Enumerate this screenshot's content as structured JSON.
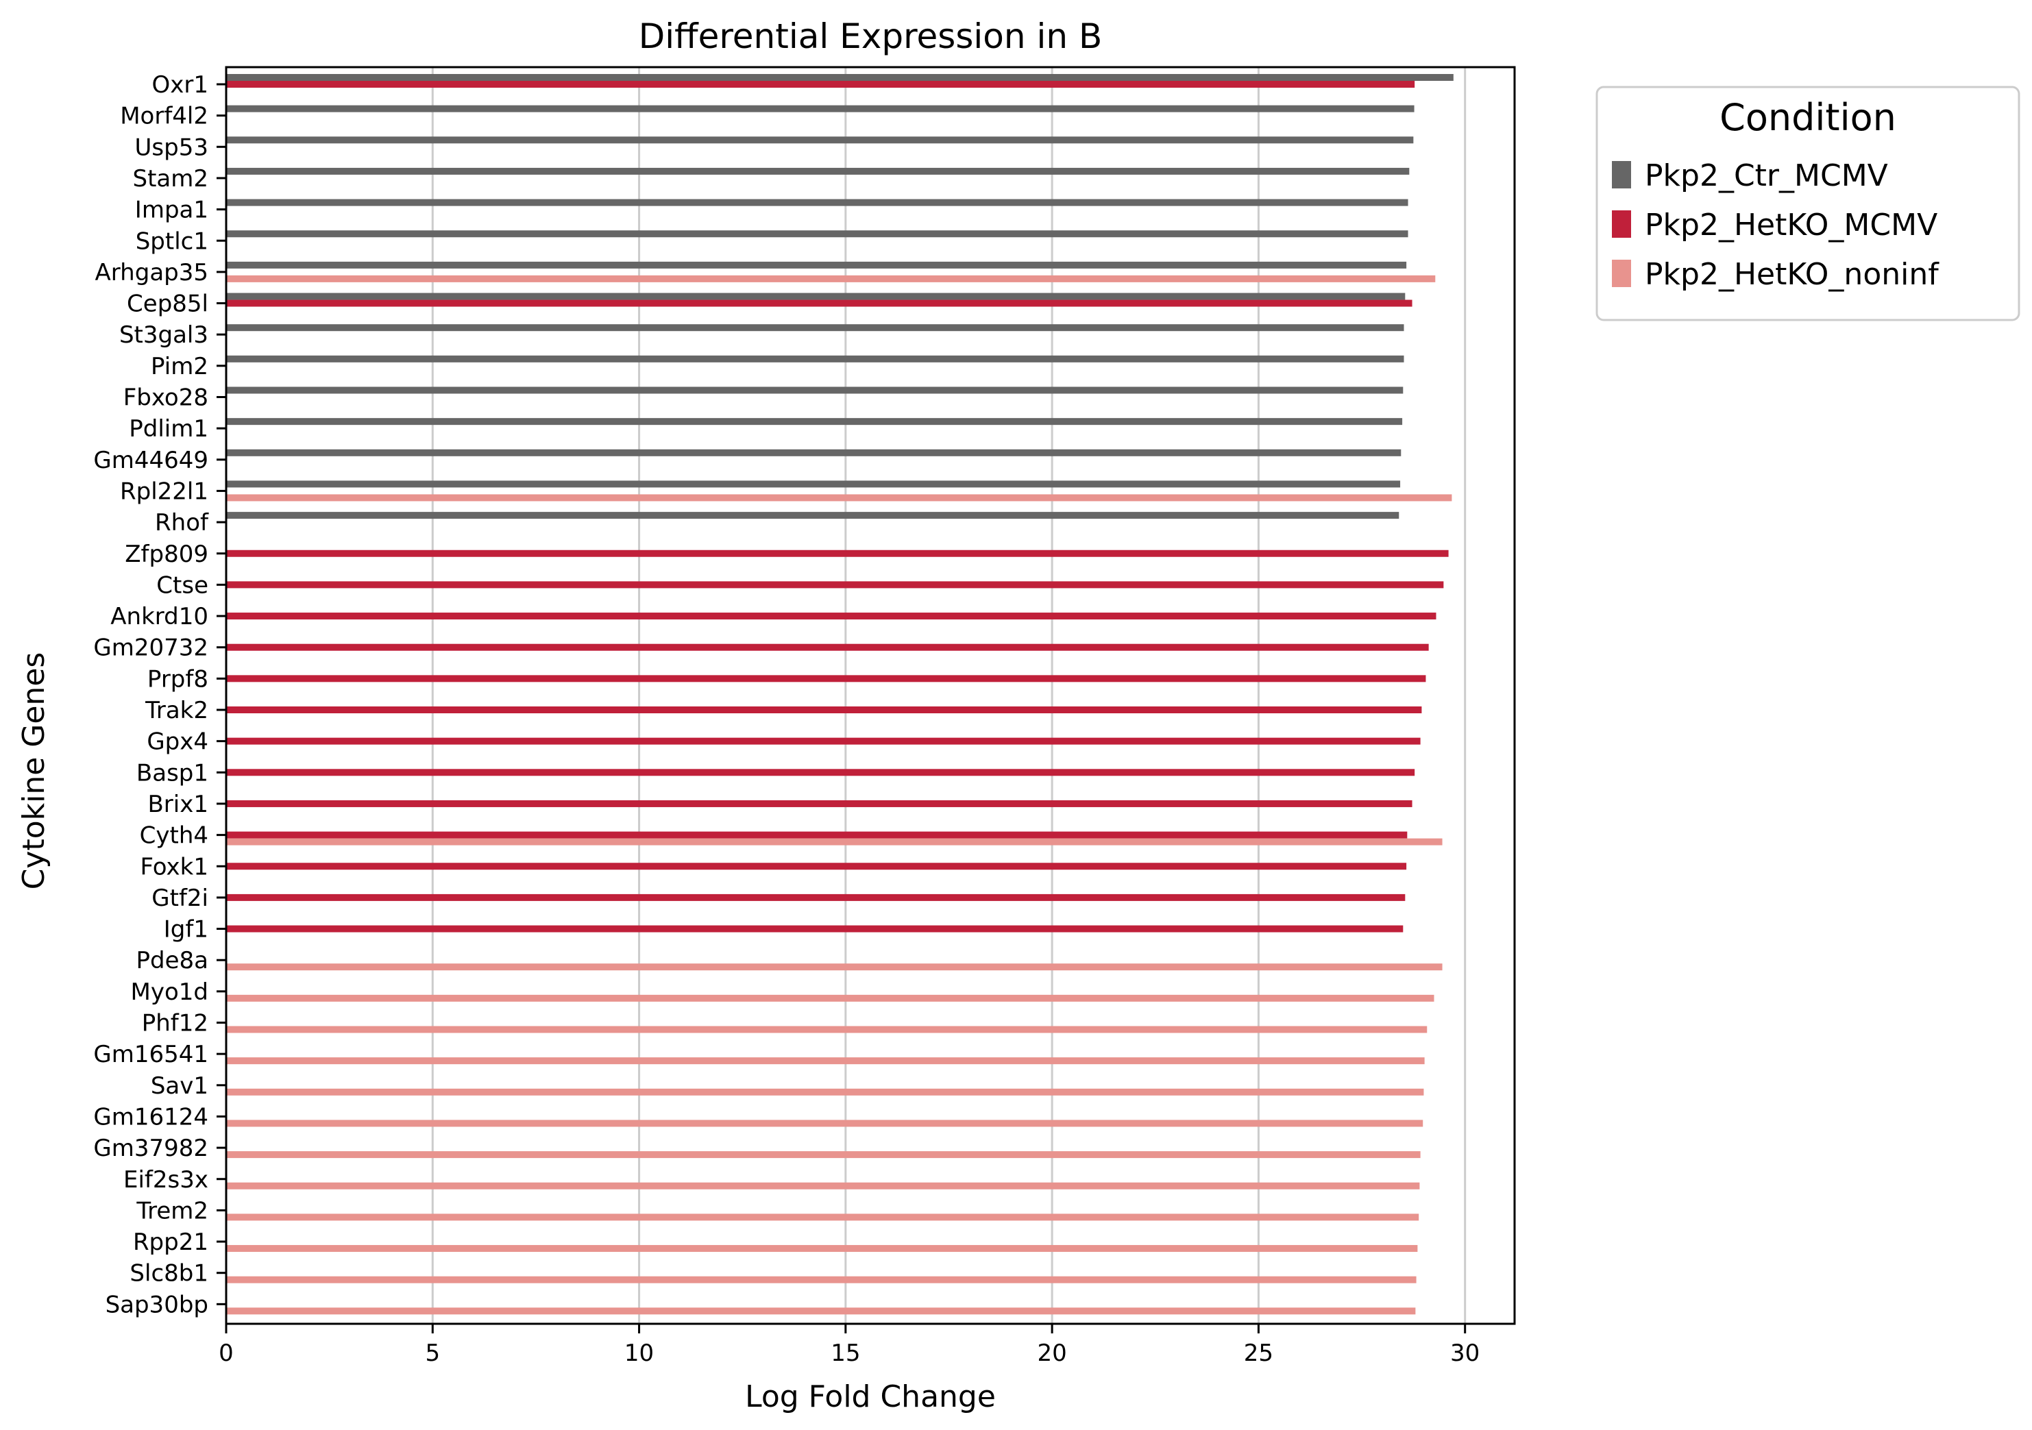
{
  "chart_data": {
    "type": "bar",
    "orientation": "horizontal",
    "title": "Differential Expression in B",
    "xlabel": "Log Fold Change",
    "ylabel": "Cytokine Genes",
    "xlim": [
      0,
      31.2
    ],
    "xticks": [
      0,
      5,
      10,
      15,
      20,
      25,
      30
    ],
    "grid": "vertical",
    "legend_title": "Condition",
    "legend_position": "outside-top-right",
    "categories": [
      "Oxr1",
      "Morf4l2",
      "Usp53",
      "Stam2",
      "Impa1",
      "Sptlc1",
      "Arhgap35",
      "Cep85l",
      "St3gal3",
      "Pim2",
      "Fbxo28",
      "Pdlim1",
      "Gm44649",
      "Rpl22l1",
      "Rhof",
      "Zfp809",
      "Ctse",
      "Ankrd10",
      "Gm20732",
      "Prpf8",
      "Trak2",
      "Gpx4",
      "Basp1",
      "Brix1",
      "Cyth4",
      "Foxk1",
      "Gtf2i",
      "Igf1",
      "Pde8a",
      "Myo1d",
      "Phf12",
      "Gm16541",
      "Sav1",
      "Gm16124",
      "Gm37982",
      "Eif2s3x",
      "Trem2",
      "Rpp21",
      "Slc8b1",
      "Sap30bp"
    ],
    "series": [
      {
        "name": "Pkp2_Ctr_MCMV",
        "color": "#666666",
        "values": [
          29.72,
          28.77,
          28.75,
          28.65,
          28.62,
          28.62,
          28.58,
          28.55,
          28.52,
          28.52,
          28.5,
          28.48,
          28.45,
          28.43,
          28.4,
          null,
          null,
          null,
          null,
          null,
          null,
          null,
          null,
          null,
          null,
          null,
          null,
          null,
          null,
          null,
          null,
          null,
          null,
          null,
          null,
          null,
          null,
          null,
          null,
          null
        ]
      },
      {
        "name": "Pkp2_HetKO_MCMV",
        "color": "#c0203a",
        "values": [
          28.78,
          null,
          null,
          null,
          null,
          null,
          null,
          28.72,
          null,
          null,
          null,
          null,
          null,
          null,
          null,
          29.6,
          29.48,
          29.3,
          29.12,
          29.05,
          28.95,
          28.92,
          28.78,
          28.72,
          28.6,
          28.58,
          28.55,
          28.5,
          null,
          null,
          null,
          null,
          null,
          null,
          null,
          null,
          null,
          null,
          null,
          null
        ]
      },
      {
        "name": "Pkp2_HetKO_noninf",
        "color": "#e8938e",
        "values": [
          null,
          null,
          null,
          null,
          null,
          null,
          29.28,
          null,
          null,
          null,
          null,
          null,
          null,
          29.68,
          null,
          null,
          null,
          null,
          null,
          null,
          null,
          null,
          null,
          null,
          29.45,
          null,
          null,
          null,
          29.45,
          29.25,
          29.08,
          29.02,
          29.0,
          28.98,
          28.92,
          28.9,
          28.88,
          28.85,
          28.82,
          28.8
        ]
      }
    ]
  }
}
